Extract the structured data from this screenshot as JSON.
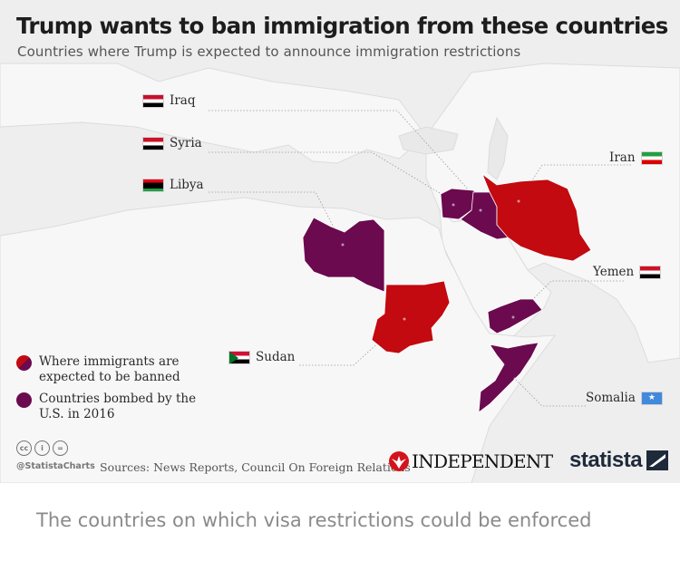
{
  "header": {
    "title": "Trump wants to ban immigration from these countries",
    "subtitle": "Countries where Trump is expected to announce immigration restrictions"
  },
  "countries": [
    {
      "name": "Iraq",
      "category": "bombed"
    },
    {
      "name": "Syria",
      "category": "bombed"
    },
    {
      "name": "Libya",
      "category": "bombed"
    },
    {
      "name": "Iran",
      "category": "banned"
    },
    {
      "name": "Yemen",
      "category": "bombed"
    },
    {
      "name": "Sudan",
      "category": "banned"
    },
    {
      "name": "Somalia",
      "category": "bombed"
    }
  ],
  "legend": {
    "banned": "Where immigrants are expected to be banned",
    "bombed": "Countries bombed by the U.S. in 2016"
  },
  "colors": {
    "banned": "#c20a10",
    "bombed": "#6b0a4e",
    "land": "#f7f7f7",
    "sea": "#e9e9e9"
  },
  "footer": {
    "handle": "@StatistaCharts",
    "sources": "Sources: News Reports, Council On Foreign Relations",
    "publisher": "INDEPENDENT",
    "brand": "statista"
  },
  "caption": "The countries on which visa restrictions could be enforced"
}
